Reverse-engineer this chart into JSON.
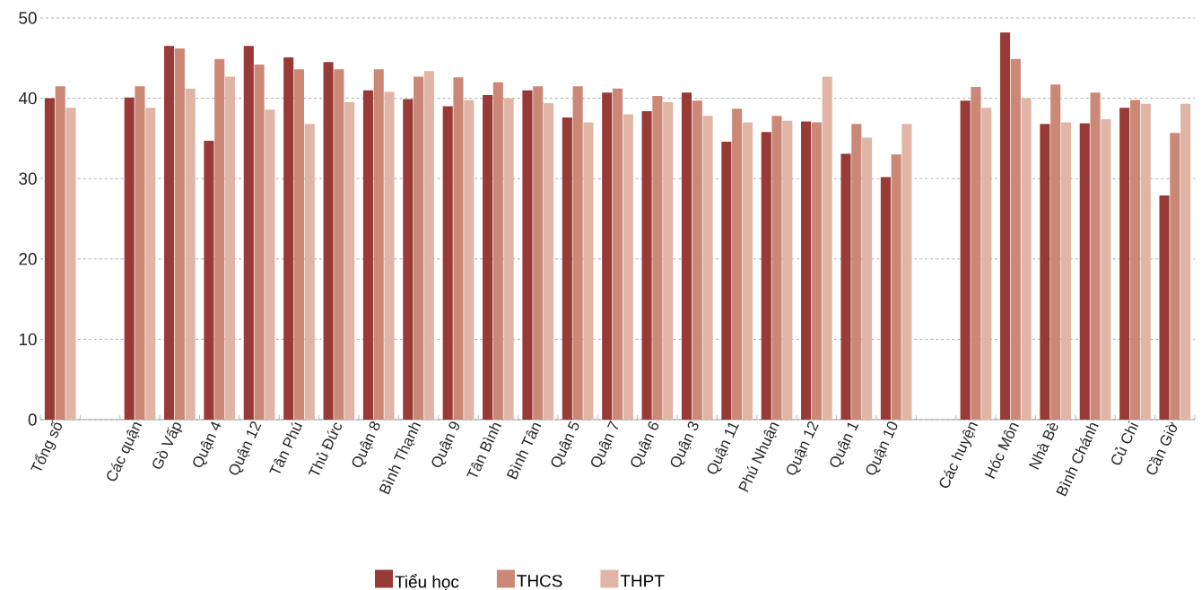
{
  "chart_data": {
    "type": "bar",
    "categories": [
      "Tổng số",
      null,
      "Các quận",
      "Gò Vấp",
      "Quận 4",
      "Quận 12",
      "Tân Phú",
      "Thủ Đức",
      "Quận 8",
      "Bình Thạnh",
      "Quận 9",
      "Tân Bình",
      "Bình Tân",
      "Quận 5",
      "Quận 7",
      "Quận 6",
      "Quận 3",
      "Quận 11",
      "Phú Nhuận",
      "Quận 12",
      "Quận 1",
      "Quận 10",
      null,
      "Các huyện",
      "Hóc Môn",
      "Nhà Bè",
      "Bình Chánh",
      "Củ Chi",
      "Cần Giờ"
    ],
    "series": [
      {
        "name": "Tiểu học",
        "color": "#983a35",
        "values": [
          40.0,
          null,
          40.1,
          46.5,
          34.7,
          46.5,
          45.1,
          44.5,
          41.0,
          39.9,
          39.0,
          40.4,
          41.0,
          37.6,
          40.7,
          38.4,
          40.7,
          34.6,
          35.8,
          37.1,
          33.1,
          30.2,
          null,
          39.7,
          48.2,
          36.8,
          36.9,
          38.8,
          27.9
        ]
      },
      {
        "name": "THCS",
        "color": "#cc8876",
        "values": [
          41.5,
          null,
          41.5,
          46.2,
          44.9,
          44.2,
          43.6,
          43.6,
          43.6,
          42.7,
          42.6,
          42.0,
          41.5,
          41.5,
          41.2,
          40.3,
          39.7,
          38.7,
          37.8,
          37.0,
          36.8,
          33.0,
          null,
          41.4,
          44.9,
          41.7,
          40.7,
          39.8,
          35.7
        ]
      },
      {
        "name": "THPT",
        "color": "#e1b5a6",
        "values": [
          38.8,
          null,
          38.8,
          41.2,
          42.7,
          38.6,
          36.8,
          39.5,
          40.8,
          43.4,
          39.8,
          40.0,
          39.4,
          37.0,
          38.0,
          39.5,
          37.8,
          37.0,
          37.2,
          42.7,
          35.1,
          36.8,
          null,
          38.8,
          40.0,
          37.0,
          37.4,
          39.3,
          39.3
        ]
      }
    ],
    "ylim": [
      0,
      50
    ],
    "yticks": [
      0,
      10,
      20,
      30,
      40,
      50
    ],
    "grid": "y",
    "legend": "bottom"
  }
}
